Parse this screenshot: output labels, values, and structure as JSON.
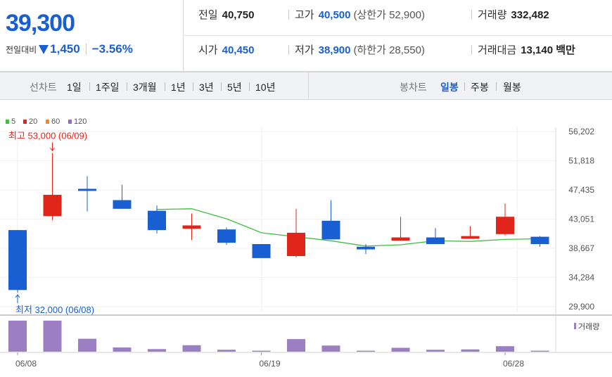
{
  "summary": {
    "current_price": "39,300",
    "change_label": "전일대비",
    "change_value": "1,450",
    "change_rate": "−3.56%",
    "prev_close_label": "전일",
    "prev_close": "40,750",
    "high_label": "고가",
    "high": "40,500",
    "upper_limit": "(상한가 52,900)",
    "volume_label": "거래량",
    "volume": "332,482",
    "open_label": "시가",
    "open": "40,450",
    "low_label": "저가",
    "low": "38,900",
    "lower_limit": "(하한가 28,550)",
    "amount_label": "거래대금",
    "amount": "13,140 백만",
    "colors": {
      "down": "#1a5fd1",
      "up": "#e0251b"
    }
  },
  "toolbar": {
    "line_chart_label": "선차트",
    "periods": [
      "1일",
      "1주일",
      "3개월",
      "1년",
      "3년",
      "5년",
      "10년"
    ],
    "candle_chart_label": "봉차트",
    "candle_periods": [
      "일봉",
      "주봉",
      "월봉"
    ],
    "selected_candle": "일봉"
  },
  "chart_data": {
    "type": "candlestick",
    "legend": [
      {
        "name": "5",
        "color": "#3fbf3f"
      },
      {
        "name": "20",
        "color": "#e0251b"
      },
      {
        "name": "60",
        "color": "#f08a1c"
      },
      {
        "name": "120",
        "color": "#9966cc"
      }
    ],
    "y_ticks": [
      "56,202",
      "51,818",
      "47,435",
      "43,051",
      "38,667",
      "34,284",
      "29,900"
    ],
    "ylim": [
      29900,
      56202
    ],
    "x_ticks": [
      "06/08",
      "06/19",
      "06/28"
    ],
    "annotations": {
      "max": "최고 53,000 (06/09)",
      "min": "최저 32,000 (06/08)"
    },
    "candles": [
      {
        "open": 41400,
        "close": 32400,
        "high": 41400,
        "low": 32000
      },
      {
        "open": 43500,
        "close": 46700,
        "high": 53000,
        "low": 42900
      },
      {
        "open": 47600,
        "close": 47300,
        "high": 49500,
        "low": 44200
      },
      {
        "open": 45900,
        "close": 44600,
        "high": 48200,
        "low": 44600
      },
      {
        "open": 44300,
        "close": 41400,
        "high": 45100,
        "low": 40900
      },
      {
        "open": 41600,
        "close": 42100,
        "high": 43900,
        "low": 39900
      },
      {
        "open": 41500,
        "close": 39500,
        "high": 41800,
        "low": 39200
      },
      {
        "open": 39300,
        "close": 37200,
        "high": 39300,
        "low": 37200
      },
      {
        "open": 37500,
        "close": 41000,
        "high": 44600,
        "low": 37300
      },
      {
        "open": 42800,
        "close": 40000,
        "high": 45900,
        "low": 40000
      },
      {
        "open": 38900,
        "close": 38500,
        "high": 39300,
        "low": 37800
      },
      {
        "open": 39800,
        "close": 40300,
        "high": 43400,
        "low": 39800
      },
      {
        "open": 40300,
        "close": 39300,
        "high": 41700,
        "low": 39300
      },
      {
        "open": 40100,
        "close": 40500,
        "high": 42000,
        "low": 40100
      },
      {
        "open": 40800,
        "close": 43400,
        "high": 45400,
        "low": 40600
      },
      {
        "open": 40400,
        "close": 39300,
        "high": 40500,
        "low": 38900
      }
    ],
    "ma5": [
      null,
      null,
      null,
      null,
      44500,
      44600,
      43100,
      41000,
      40400,
      39800,
      39000,
      39200,
      39800,
      39700,
      40000,
      40100
    ],
    "volume_label": "거래량",
    "volume": [
      0.96,
      0.96,
      0.4,
      0.13,
      0.08,
      0.2,
      0.06,
      0.03,
      0.39,
      0.19,
      0.03,
      0.12,
      0.06,
      0.07,
      0.17,
      0.03
    ]
  }
}
